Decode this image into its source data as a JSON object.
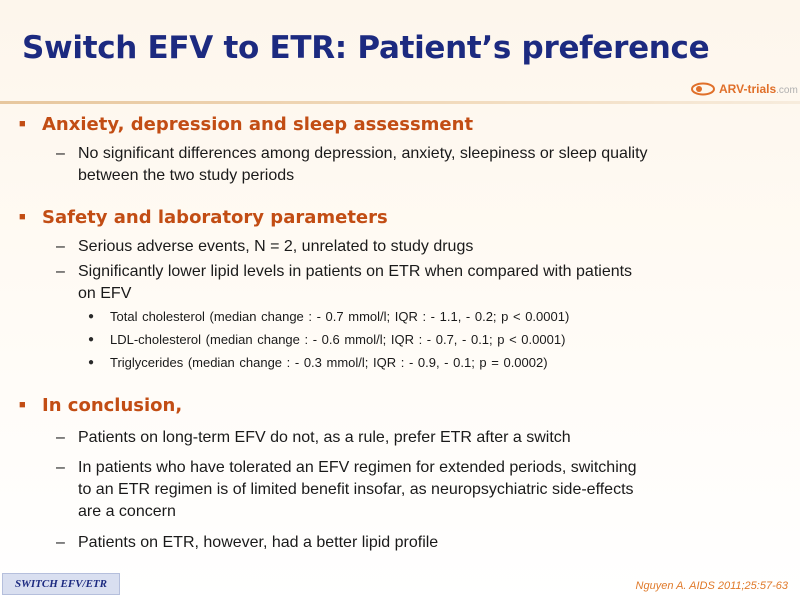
{
  "slide": {
    "title": "Switch EFV to ETR: Patient’s preference",
    "logo": {
      "name": "ARV-trials",
      "suffix": ".com"
    },
    "sections": [
      {
        "heading": "Anxiety, depression and sleep assessment",
        "items": [
          {
            "lines": [
              "No significant differences among depression, anxiety, sleepiness or sleep quality",
              "between the two study periods"
            ]
          }
        ]
      },
      {
        "heading": "Safety and laboratory parameters",
        "items": [
          {
            "lines": [
              "Serious adverse events, N = 2, unrelated to study drugs"
            ]
          },
          {
            "lines": [
              "Significantly lower lipid levels in patients on ETR when compared with patients",
              "on EFV"
            ],
            "subitems": [
              "Total cholesterol (median change : - 0.7 mmol/l;  IQR : - 1.1, - 0.2; p < 0.0001)",
              "LDL-cholesterol (median change : - 0.6 mmol/l;  IQR : - 0.7, - 0.1; p < 0.0001)",
              "Triglycerides (median change : - 0.3 mmol/l;  IQR : - 0.9, - 0.1; p = 0.0002)"
            ]
          }
        ]
      },
      {
        "heading": "In conclusion,",
        "items": [
          {
            "lines": [
              "Patients on long-term EFV do not, as a rule, prefer ETR after a switch"
            ]
          },
          {
            "lines": [
              "In patients who have tolerated an EFV regimen for extended periods, switching",
              "to an ETR regimen is of limited benefit insofar, as neuropsychiatric side-effects",
              "are a concern"
            ]
          },
          {
            "lines": [
              "Patients on ETR, however, had a better lipid profile"
            ]
          }
        ]
      }
    ],
    "footer_tag": "SWITCH EFV/ETR",
    "citation": "Nguyen A. AIDS 2011;25:57-63"
  },
  "colors": {
    "title": "#1c2a80",
    "heading": "#c24d14",
    "body_text": "#1a1a1a",
    "citation": "#e07a2a",
    "footer_tag_bg": "#d9dff0"
  },
  "icons": {
    "logo": "arv-trials-logo-icon",
    "section_bullet": "square-bullet-icon",
    "item_bullet": "dash",
    "subitem_bullet": "dot"
  }
}
